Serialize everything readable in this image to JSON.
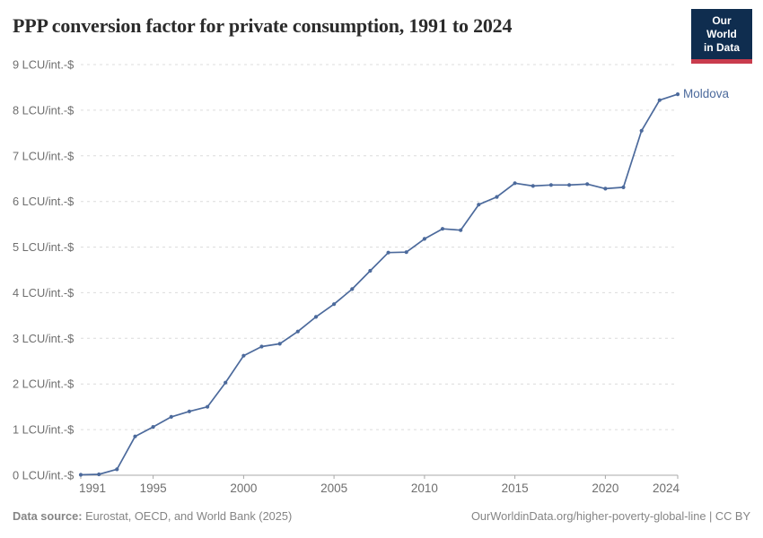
{
  "header": {
    "title": "PPP conversion factor for private consumption, 1991 to 2024",
    "logo": {
      "line1": "Our World",
      "line2": "in Data",
      "bg_color": "#0f2d4f",
      "accent_color": "#c93c4d"
    }
  },
  "chart_data": {
    "type": "line",
    "title": "PPP conversion factor for private consumption, 1991 to 2024",
    "xlabel": "",
    "ylabel": "",
    "unit": "LCU/int.-$",
    "xlim": [
      1991,
      2024
    ],
    "ylim": [
      0,
      9
    ],
    "grid": "horizontal-dashed",
    "legend_position": "line-end-label",
    "xticks": [
      1991,
      1995,
      2000,
      2005,
      2010,
      2015,
      2020,
      2024
    ],
    "ytick_values": [
      0,
      1,
      2,
      3,
      4,
      5,
      6,
      7,
      8,
      9
    ],
    "ytick_labels": [
      "0 LCU/int.-$",
      "1 LCU/int.-$",
      "2 LCU/int.-$",
      "3 LCU/int.-$",
      "4 LCU/int.-$",
      "5 LCU/int.-$",
      "6 LCU/int.-$",
      "7 LCU/int.-$",
      "8 LCU/int.-$",
      "9 LCU/int.-$"
    ],
    "x": [
      1991,
      1992,
      1993,
      1994,
      1995,
      1996,
      1997,
      1998,
      1999,
      2000,
      2001,
      2002,
      2003,
      2004,
      2005,
      2006,
      2007,
      2008,
      2009,
      2010,
      2011,
      2012,
      2013,
      2014,
      2015,
      2016,
      2017,
      2018,
      2019,
      2020,
      2021,
      2022,
      2023,
      2024
    ],
    "series": [
      {
        "name": "Moldova",
        "color": "#4c6a9c",
        "values": [
          0.01,
          0.02,
          0.13,
          0.85,
          1.06,
          1.28,
          1.4,
          1.5,
          2.03,
          2.62,
          2.82,
          2.88,
          3.15,
          3.47,
          3.75,
          4.08,
          4.48,
          4.88,
          4.89,
          5.18,
          5.4,
          5.37,
          5.93,
          6.1,
          6.4,
          6.34,
          6.36,
          6.36,
          6.38,
          6.28,
          6.31,
          7.55,
          8.22,
          8.35
        ]
      }
    ]
  },
  "footer": {
    "source_label": "Data source:",
    "source_text": " Eurostat, OECD, and World Bank (2025)",
    "credit": "OurWorldinData.org/higher-poverty-global-line | CC BY"
  },
  "colors": {
    "line": "#4c6a9c",
    "grid": "#dcdcdc",
    "axis": "#a8a8a8",
    "tick_text": "#6e6e6e",
    "footer_text": "#858585",
    "title_text": "#2b2b2b"
  }
}
